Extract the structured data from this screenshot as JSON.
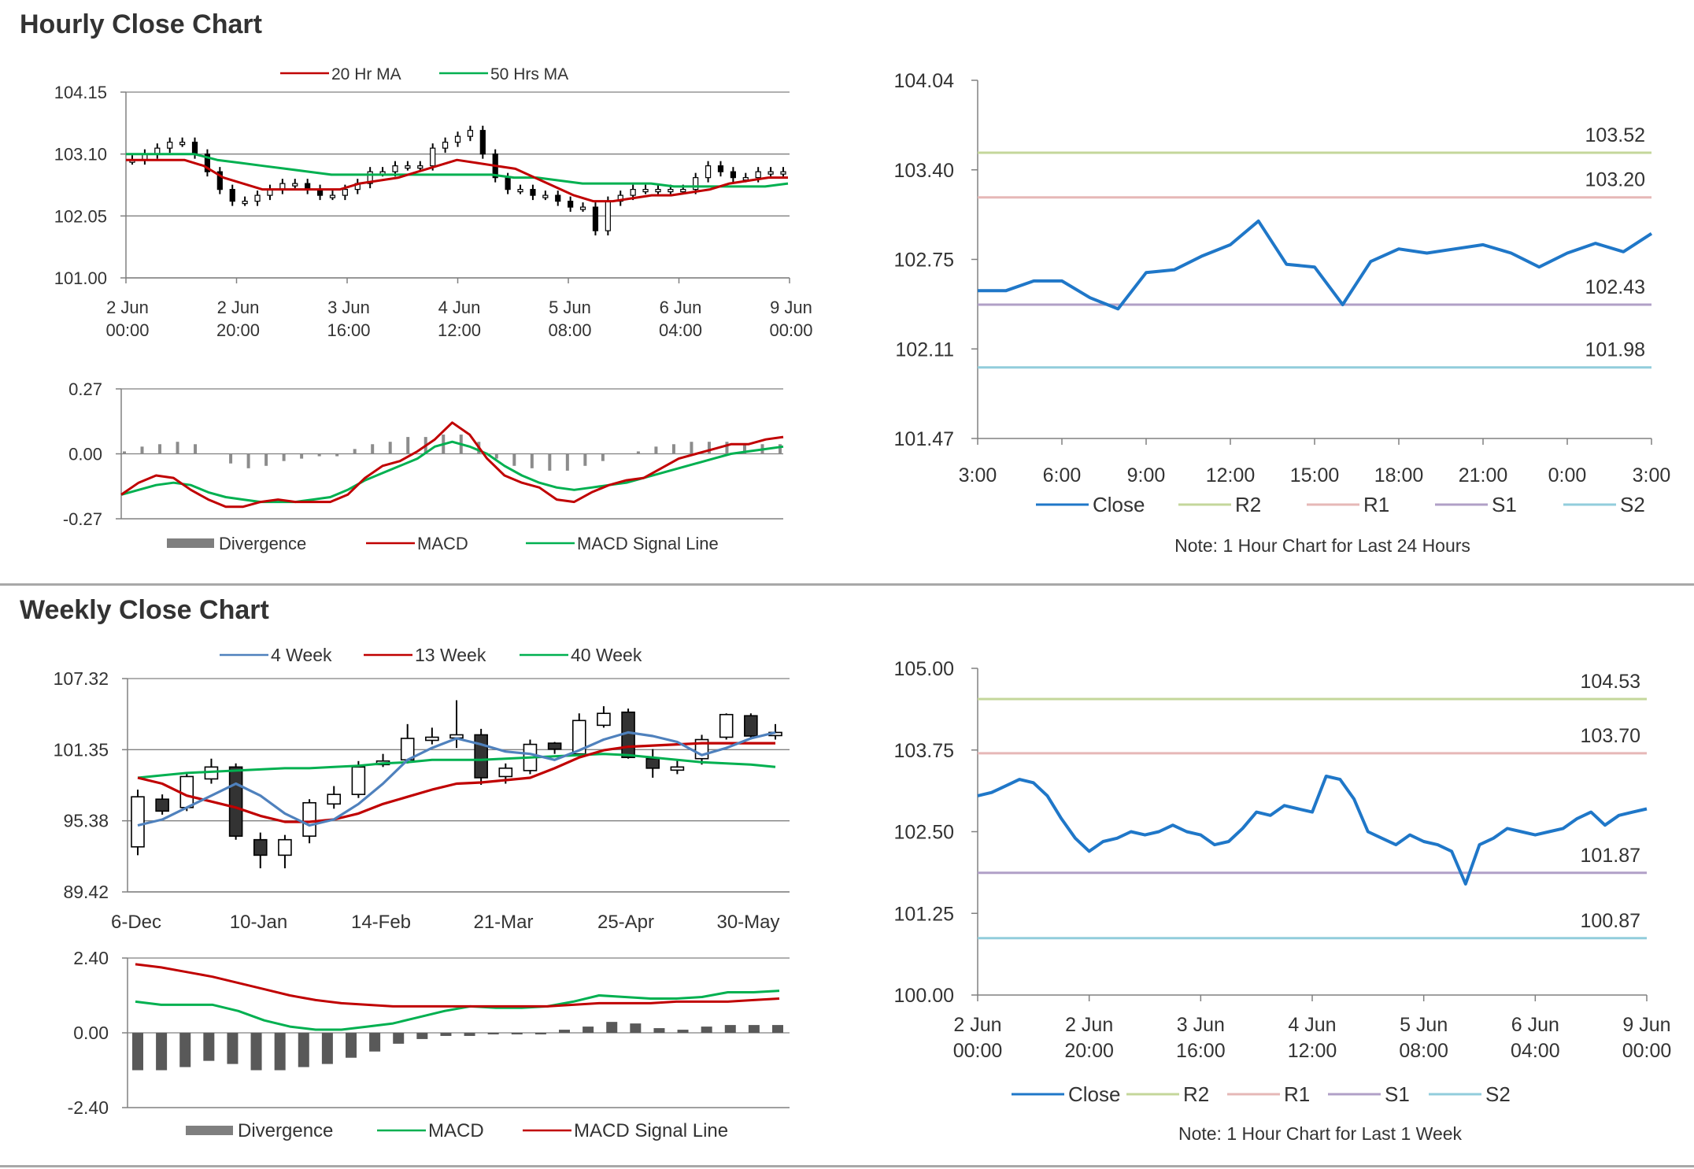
{
  "sections": [
    {
      "title": "Hourly Close Chart"
    },
    {
      "title": "Weekly Close Chart"
    }
  ],
  "colors": {
    "red": "#c00000",
    "green": "#00b050",
    "blue": "#4f81bd",
    "close": "#1f77c8",
    "r2": "#c4d79b",
    "r1": "#e6b8b7",
    "s1": "#b1a0c7",
    "s2": "#92cddc",
    "grid": "#808080",
    "bar": "#7f7f7f"
  },
  "chart_data": [
    {
      "id": "hourly-price",
      "type": "candlestick",
      "ylim": [
        101.0,
        104.15
      ],
      "yticks": [
        "104.15",
        "103.10",
        "102.05",
        "101.00"
      ],
      "xticks": [
        [
          "2 Jun",
          "00:00"
        ],
        [
          "2 Jun",
          "20:00"
        ],
        [
          "3 Jun",
          "16:00"
        ],
        [
          "4 Jun",
          "12:00"
        ],
        [
          "5 Jun",
          "08:00"
        ],
        [
          "6 Jun",
          "04:00"
        ],
        [
          "9 Jun",
          "00:00"
        ]
      ],
      "legend": [
        {
          "name": "20 Hr MA",
          "color": "#c00000"
        },
        {
          "name": "50 Hrs MA",
          "color": "#00b050"
        }
      ],
      "close": [
        103.0,
        103.1,
        103.2,
        103.3,
        103.3,
        103.1,
        102.8,
        102.5,
        102.3,
        102.3,
        102.4,
        102.5,
        102.6,
        102.6,
        102.5,
        102.4,
        102.4,
        102.5,
        102.6,
        102.8,
        102.8,
        102.9,
        102.9,
        102.9,
        103.2,
        103.3,
        103.4,
        103.5,
        103.1,
        102.7,
        102.5,
        102.5,
        102.4,
        102.4,
        102.3,
        102.2,
        102.2,
        101.8,
        102.3,
        102.4,
        102.5,
        102.5,
        102.5,
        102.5,
        102.5,
        102.7,
        102.9,
        102.8,
        102.7,
        102.7,
        102.8,
        102.8,
        102.8
      ],
      "ma20": [
        103.0,
        103.0,
        103.0,
        103.0,
        102.9,
        102.7,
        102.6,
        102.5,
        102.5,
        102.5,
        102.5,
        102.5,
        102.6,
        102.65,
        102.7,
        102.8,
        102.9,
        103.0,
        102.95,
        102.9,
        102.85,
        102.7,
        102.55,
        102.4,
        102.3,
        102.3,
        102.35,
        102.4,
        102.4,
        102.45,
        102.5,
        102.6,
        102.65,
        102.7,
        102.7
      ],
      "ma50": [
        103.1,
        103.1,
        103.1,
        103.1,
        103.0,
        102.95,
        102.9,
        102.85,
        102.8,
        102.75,
        102.75,
        102.75,
        102.75,
        102.75,
        102.75,
        102.75,
        102.75,
        102.7,
        102.7,
        102.65,
        102.6,
        102.6,
        102.6,
        102.6,
        102.55,
        102.55,
        102.55,
        102.55,
        102.55,
        102.6
      ],
      "ma_xspan": 1.0
    },
    {
      "id": "hourly-macd",
      "type": "line+bar",
      "ylim": [
        -0.27,
        0.27
      ],
      "yticks": [
        "0.27",
        "0.00",
        "-0.27"
      ],
      "legend": [
        {
          "name": "Divergence",
          "color": "#7f7f7f"
        },
        {
          "name": "MACD",
          "color": "#c00000"
        },
        {
          "name": "MACD Signal Line",
          "color": "#00b050"
        }
      ],
      "macd": [
        -0.17,
        -0.12,
        -0.09,
        -0.1,
        -0.15,
        -0.19,
        -0.22,
        -0.22,
        -0.2,
        -0.19,
        -0.2,
        -0.2,
        -0.2,
        -0.17,
        -0.1,
        -0.05,
        -0.03,
        0.01,
        0.06,
        0.13,
        0.08,
        -0.02,
        -0.09,
        -0.12,
        -0.14,
        -0.19,
        -0.2,
        -0.16,
        -0.13,
        -0.11,
        -0.1,
        -0.06,
        -0.02,
        0.0,
        0.02,
        0.04,
        0.04,
        0.06,
        0.07
      ],
      "signal": [
        -0.17,
        -0.15,
        -0.13,
        -0.12,
        -0.13,
        -0.16,
        -0.18,
        -0.19,
        -0.2,
        -0.2,
        -0.2,
        -0.19,
        -0.18,
        -0.15,
        -0.11,
        -0.08,
        -0.05,
        -0.02,
        0.03,
        0.05,
        0.03,
        0.0,
        -0.05,
        -0.09,
        -0.12,
        -0.14,
        -0.15,
        -0.14,
        -0.13,
        -0.12,
        -0.1,
        -0.08,
        -0.06,
        -0.04,
        -0.02,
        0.0,
        0.01,
        0.02,
        0.03
      ],
      "divergence": [
        0.01,
        0.03,
        0.04,
        0.05,
        0.04,
        0.0,
        -0.04,
        -0.06,
        -0.05,
        -0.03,
        -0.02,
        -0.01,
        -0.01,
        0.02,
        0.04,
        0.05,
        0.07,
        0.07,
        0.08,
        0.08,
        0.05,
        -0.02,
        -0.05,
        -0.06,
        -0.07,
        -0.07,
        -0.05,
        -0.03,
        0.0,
        0.01,
        0.03,
        0.04,
        0.05,
        0.05,
        0.05,
        0.04,
        0.04,
        0.04
      ]
    },
    {
      "id": "hourly-24h",
      "type": "line",
      "ylim": [
        101.47,
        104.04
      ],
      "yticks": [
        "104.04",
        "103.40",
        "102.75",
        "102.11",
        "101.47"
      ],
      "xticks": [
        "3:00",
        "6:00",
        "9:00",
        "12:00",
        "15:00",
        "18:00",
        "21:00",
        "0:00",
        "3:00"
      ],
      "levels": [
        {
          "name": "R2",
          "value": 103.52,
          "label": "103.52",
          "color": "#c4d79b"
        },
        {
          "name": "R1",
          "value": 103.2,
          "label": "103.20",
          "color": "#e6b8b7"
        },
        {
          "name": "S1",
          "value": 102.43,
          "label": "102.43",
          "color": "#b1a0c7"
        },
        {
          "name": "S2",
          "value": 101.98,
          "label": "101.98",
          "color": "#92cddc"
        }
      ],
      "close": [
        102.53,
        102.53,
        102.6,
        102.6,
        102.48,
        102.4,
        102.66,
        102.68,
        102.78,
        102.86,
        103.03,
        102.72,
        102.7,
        102.43,
        102.74,
        102.83,
        102.8,
        102.83,
        102.86,
        102.8,
        102.7,
        102.8,
        102.87,
        102.81,
        102.94
      ],
      "legend": [
        "Close",
        "R2",
        "R1",
        "S1",
        "S2"
      ],
      "note": "Note: 1 Hour Chart for Last 24 Hours"
    },
    {
      "id": "weekly-price",
      "type": "candlestick",
      "ylim": [
        89.42,
        107.32
      ],
      "yticks": [
        "107.32",
        "101.35",
        "95.38",
        "89.42"
      ],
      "xticks": [
        "6-Dec",
        "10-Jan",
        "14-Feb",
        "21-Mar",
        "25-Apr",
        "30-May"
      ],
      "legend": [
        {
          "name": "4 Week",
          "color": "#4f81bd"
        },
        {
          "name": "13 Week",
          "color": "#c00000"
        },
        {
          "name": "40 Week",
          "color": "#00b050"
        }
      ],
      "candles": [
        [
          93.2,
          97.4,
          92.5,
          98.0
        ],
        [
          97.2,
          96.2,
          95.9,
          97.6
        ],
        [
          96.5,
          99.1,
          96.2,
          99.4
        ],
        [
          98.9,
          99.9,
          98.5,
          100.6
        ],
        [
          99.9,
          94.1,
          93.8,
          100.2
        ],
        [
          93.8,
          92.5,
          91.4,
          94.4
        ],
        [
          92.5,
          93.8,
          91.4,
          94.2
        ],
        [
          94.1,
          96.9,
          93.5,
          97.2
        ],
        [
          96.8,
          97.6,
          96.4,
          98.3
        ],
        [
          97.6,
          99.9,
          97.3,
          100.4
        ],
        [
          100.1,
          100.4,
          99.9,
          101.0
        ],
        [
          100.5,
          102.3,
          100.2,
          103.5
        ],
        [
          102.2,
          102.4,
          101.8,
          103.2
        ],
        [
          102.6,
          102.6,
          101.5,
          105.5
        ],
        [
          102.6,
          99.0,
          98.4,
          103.1
        ],
        [
          99.1,
          99.8,
          98.5,
          100.2
        ],
        [
          99.6,
          101.8,
          99.3,
          102.2
        ],
        [
          101.9,
          101.4,
          101.0,
          102.0
        ],
        [
          101.0,
          103.8,
          100.8,
          104.4
        ],
        [
          103.4,
          104.4,
          103.2,
          105.0
        ],
        [
          104.5,
          100.7,
          100.6,
          104.8
        ],
        [
          100.6,
          99.8,
          99.0,
          101.4
        ],
        [
          99.7,
          99.9,
          99.3,
          100.5
        ],
        [
          100.6,
          102.2,
          100.1,
          102.6
        ],
        [
          102.4,
          104.3,
          102.2,
          104.4
        ],
        [
          104.2,
          102.5,
          102.2,
          104.4
        ],
        [
          102.6,
          102.8,
          102.2,
          103.5
        ]
      ],
      "ma4": [
        95.0,
        95.5,
        96.5,
        97.5,
        98.5,
        97.5,
        96.0,
        95.0,
        95.5,
        96.8,
        98.5,
        100.5,
        101.5,
        102.3,
        101.8,
        101.2,
        101.0,
        100.5,
        101.3,
        102.2,
        102.8,
        102.5,
        102.0,
        100.9,
        101.5,
        102.3,
        102.8
      ],
      "ma13": [
        99.0,
        98.5,
        97.5,
        97.0,
        96.5,
        95.8,
        95.3,
        95.3,
        95.5,
        96.0,
        96.8,
        97.4,
        98.0,
        98.5,
        98.6,
        98.8,
        99.0,
        99.8,
        100.7,
        101.3,
        101.6,
        101.7,
        101.8,
        101.9,
        101.9,
        101.9,
        101.9
      ],
      "ma40": [
        99.0,
        99.2,
        99.4,
        99.5,
        99.6,
        99.7,
        99.8,
        99.8,
        99.9,
        100.0,
        100.2,
        100.3,
        100.5,
        100.5,
        100.5,
        100.6,
        100.7,
        100.8,
        100.9,
        101.0,
        100.9,
        100.7,
        100.5,
        100.3,
        100.2,
        100.1,
        99.9
      ]
    },
    {
      "id": "weekly-macd",
      "type": "line+bar",
      "ylim": [
        -2.4,
        2.4
      ],
      "yticks": [
        "2.40",
        "0.00",
        "-2.40"
      ],
      "legend": [
        {
          "name": "Divergence",
          "color": "#7f7f7f"
        },
        {
          "name": "MACD",
          "color": "#00b050"
        },
        {
          "name": "MACD Signal Line",
          "color": "#c00000"
        }
      ],
      "divergence": [
        -1.2,
        -1.2,
        -1.1,
        -0.9,
        -1.0,
        -1.2,
        -1.2,
        -1.1,
        -1.0,
        -0.8,
        -0.6,
        -0.35,
        -0.2,
        -0.1,
        -0.1,
        -0.05,
        -0.05,
        0.0,
        0.1,
        0.2,
        0.35,
        0.3,
        0.15,
        0.1,
        0.2,
        0.25,
        0.25,
        0.25
      ],
      "macd": [
        1.0,
        0.9,
        0.9,
        0.9,
        0.7,
        0.4,
        0.2,
        0.1,
        0.1,
        0.2,
        0.3,
        0.5,
        0.7,
        0.85,
        0.8,
        0.8,
        0.85,
        1.0,
        1.2,
        1.15,
        1.1,
        1.1,
        1.15,
        1.3,
        1.3,
        1.35
      ],
      "signal": [
        2.2,
        2.1,
        1.95,
        1.8,
        1.6,
        1.4,
        1.2,
        1.05,
        0.95,
        0.9,
        0.85,
        0.85,
        0.85,
        0.85,
        0.85,
        0.85,
        0.85,
        0.9,
        0.95,
        0.95,
        0.95,
        1.0,
        1.0,
        1.0,
        1.05,
        1.1
      ]
    },
    {
      "id": "weekly-1w",
      "type": "line",
      "ylim": [
        100.0,
        105.0
      ],
      "yticks": [
        "105.00",
        "103.75",
        "102.50",
        "101.25",
        "100.00"
      ],
      "xticks": [
        [
          "2 Jun",
          "00:00"
        ],
        [
          "2 Jun",
          "20:00"
        ],
        [
          "3 Jun",
          "16:00"
        ],
        [
          "4 Jun",
          "12:00"
        ],
        [
          "5 Jun",
          "08:00"
        ],
        [
          "6 Jun",
          "04:00"
        ],
        [
          "9 Jun",
          "00:00"
        ]
      ],
      "levels": [
        {
          "name": "R2",
          "value": 104.53,
          "label": "104.53",
          "color": "#c4d79b"
        },
        {
          "name": "R1",
          "value": 103.7,
          "label": "103.70",
          "color": "#e6b8b7"
        },
        {
          "name": "S1",
          "value": 101.87,
          "label": "101.87",
          "color": "#b1a0c7"
        },
        {
          "name": "S2",
          "value": 100.87,
          "label": "100.87",
          "color": "#92cddc"
        }
      ],
      "close": [
        103.05,
        103.1,
        103.2,
        103.3,
        103.25,
        103.05,
        102.7,
        102.4,
        102.2,
        102.35,
        102.4,
        102.5,
        102.45,
        102.5,
        102.6,
        102.5,
        102.45,
        102.3,
        102.35,
        102.55,
        102.8,
        102.75,
        102.9,
        102.85,
        102.8,
        103.35,
        103.3,
        103.0,
        102.5,
        102.4,
        102.3,
        102.45,
        102.35,
        102.3,
        102.2,
        101.7,
        102.3,
        102.4,
        102.55,
        102.5,
        102.45,
        102.5,
        102.55,
        102.7,
        102.8,
        102.6,
        102.75,
        102.8,
        102.85
      ],
      "legend": [
        "Close",
        "R2",
        "R1",
        "S1",
        "S2"
      ],
      "note": "Note: 1 Hour Chart for Last 1 Week"
    }
  ]
}
